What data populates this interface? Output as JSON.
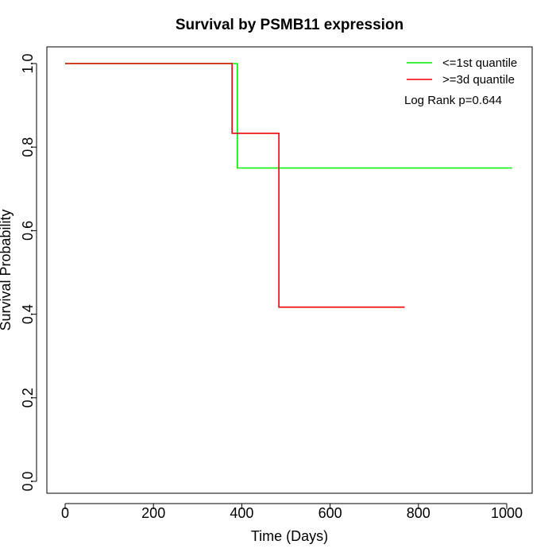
{
  "chart_data": {
    "type": "line",
    "step": true,
    "title": "Survival by PSMB11 expression",
    "xlabel": "Time (Days)",
    "ylabel": "Survival Probability",
    "xlim": [
      0,
      1010
    ],
    "ylim": [
      0,
      1.0
    ],
    "x_ticks": [
      0,
      200,
      400,
      600,
      800,
      1000
    ],
    "x_tick_labels": [
      "0",
      "200",
      "400",
      "600",
      "800",
      "1000"
    ],
    "y_ticks": [
      0.0,
      0.2,
      0.4,
      0.6,
      0.8,
      1.0
    ],
    "y_tick_labels": [
      "0.0",
      "0.2",
      "0.4",
      "0.6",
      "0.8",
      "1.0"
    ],
    "grid": false,
    "legend_position": "top-right",
    "series": [
      {
        "name": "<=1st quantile",
        "color": "#00ee00",
        "points": [
          [
            0,
            1.0
          ],
          [
            390,
            1.0
          ],
          [
            390,
            0.75
          ],
          [
            1012,
            0.75
          ]
        ]
      },
      {
        "name": ">=3d quantile",
        "color": "#ee0000",
        "points": [
          [
            0,
            1.0
          ],
          [
            378,
            1.0
          ],
          [
            378,
            0.833
          ],
          [
            484,
            0.833
          ],
          [
            484,
            0.417
          ],
          [
            769,
            0.417
          ]
        ]
      }
    ],
    "annotation": "Log Rank p=0.644"
  }
}
